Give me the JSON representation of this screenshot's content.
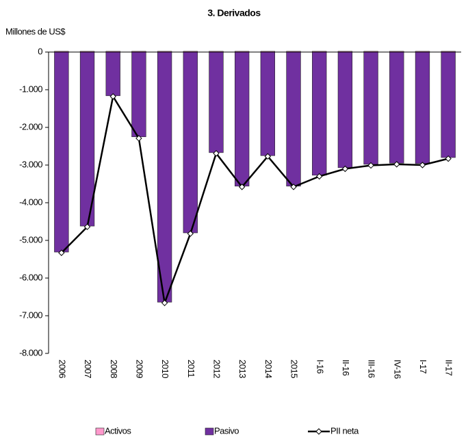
{
  "chart_data": {
    "type": "bar",
    "title": "3. Derivados",
    "y_label": "Millones de US$",
    "categories": [
      "2006",
      "2007",
      "2008",
      "2009",
      "2010",
      "2011",
      "2012",
      "2013",
      "2014",
      "2015",
      "I-16",
      "II-16",
      "III-16",
      "IV-16",
      "I-17",
      "II-17"
    ],
    "series": [
      {
        "name": "Activos",
        "type": "bar",
        "color": "#ff99cc",
        "values": [
          20,
          20,
          20,
          20,
          20,
          20,
          20,
          20,
          20,
          20,
          20,
          20,
          20,
          20,
          20,
          20
        ]
      },
      {
        "name": "Pasivo",
        "type": "bar",
        "color": "#7030a0",
        "values": [
          -5310,
          -4620,
          -1160,
          -2250,
          -6640,
          -4800,
          -2670,
          -3560,
          -2750,
          -3560,
          -3270,
          -3070,
          -2980,
          -2950,
          -2960,
          -2800
        ]
      },
      {
        "name": "PII neta",
        "type": "line",
        "color": "#000000",
        "values": [
          -5330,
          -4640,
          -1180,
          -2290,
          -6660,
          -4820,
          -2690,
          -3580,
          -2770,
          -3580,
          -3300,
          -3100,
          -3010,
          -2980,
          -3000,
          -2830
        ]
      }
    ],
    "ylim": [
      -8000,
      0
    ],
    "yticks": [
      {
        "value": -8000,
        "label": "-8.000"
      },
      {
        "value": -7000,
        "label": "-7.000"
      },
      {
        "value": -6000,
        "label": "-6.000"
      },
      {
        "value": -5000,
        "label": "-5.000"
      },
      {
        "value": -4000,
        "label": "-4.000"
      },
      {
        "value": -3000,
        "label": "-3.000"
      },
      {
        "value": -2000,
        "label": "-2.000"
      },
      {
        "value": -1000,
        "label": "-1.000"
      },
      0
    ],
    "grid": false,
    "legend": "bottom"
  }
}
